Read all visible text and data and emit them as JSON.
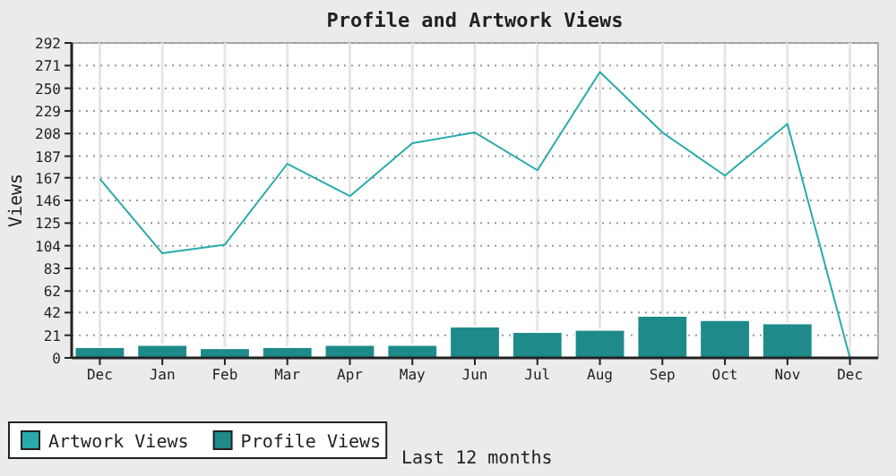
{
  "chart_data": {
    "type": "bar",
    "title": "Profile and Artwork Views",
    "xlabel": "Last 12 months",
    "ylabel": "Views",
    "categories": [
      "Dec",
      "Jan",
      "Feb",
      "Mar",
      "Apr",
      "May",
      "Jun",
      "Jul",
      "Aug",
      "Sep",
      "Oct",
      "Nov",
      "Dec"
    ],
    "series": [
      {
        "name": "Artwork Views",
        "type": "line",
        "color": "#2aabab",
        "values": [
          166,
          97,
          105,
          180,
          150,
          199,
          209,
          174,
          265,
          209,
          169,
          217,
          0
        ]
      },
      {
        "name": "Profile Views",
        "color": "#1e8a8a",
        "values": [
          10,
          12,
          9,
          10,
          12,
          12,
          29,
          24,
          26,
          39,
          35,
          32,
          0
        ]
      }
    ],
    "ylim": [
      0,
      292
    ],
    "yticks": [
      0,
      21,
      42,
      62,
      83,
      104,
      125,
      146,
      167,
      187,
      208,
      229,
      250,
      271,
      292
    ],
    "grid": true,
    "legend": "bottom left"
  }
}
